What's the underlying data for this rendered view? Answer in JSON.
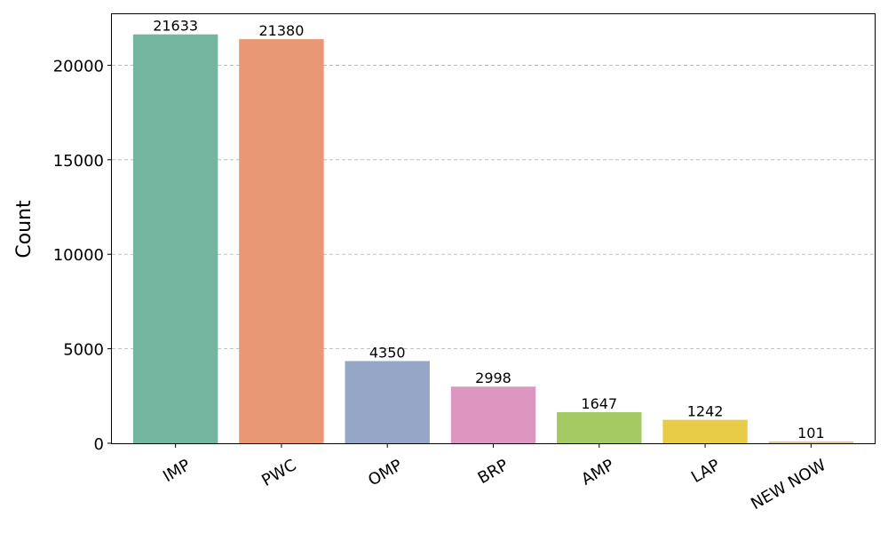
{
  "chart_data": {
    "type": "bar",
    "title": "",
    "xlabel": "",
    "ylabel": "Count",
    "categories": [
      "IMP",
      "PWC",
      "OMP",
      "BRP",
      "AMP",
      "LAP",
      "NEW NOW"
    ],
    "values": [
      21633,
      21380,
      4350,
      2998,
      1647,
      1242,
      101
    ],
    "colors": [
      "#73b59f",
      "#e99875",
      "#95a6c6",
      "#dc96c0",
      "#a5c963",
      "#e8cc48",
      "#e2c595"
    ],
    "ylim": [
      0,
      22700
    ],
    "yticks": [
      0,
      5000,
      10000,
      15000,
      20000
    ],
    "ytick_labels": [
      "0",
      "5000",
      "10000",
      "15000",
      "20000"
    ],
    "xtick_rotation_deg": -30,
    "grid": "y-dashed",
    "legend": "none"
  }
}
